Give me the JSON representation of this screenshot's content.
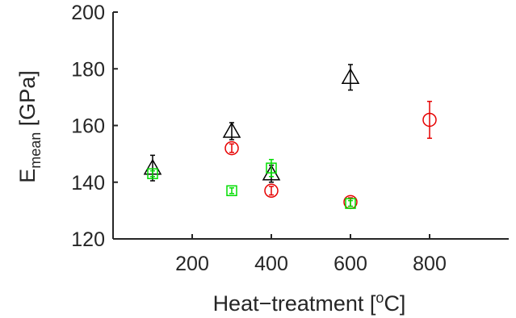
{
  "chart_data": {
    "type": "scatter",
    "title": "",
    "xlabel": {
      "main": "Heat−treatment [",
      "sup": "o",
      "end": "C]"
    },
    "ylabel": {
      "main": "E",
      "sub": "mean",
      "end": " [GPa]"
    },
    "xlim": [
      0,
      1000
    ],
    "ylim": [
      120,
      200
    ],
    "xticks": [
      200,
      400,
      600,
      800
    ],
    "yticks": [
      120,
      140,
      160,
      180,
      200
    ],
    "xtick_labels": [
      "200",
      "400",
      "600",
      "800"
    ],
    "ytick_labels": [
      "120",
      "140",
      "160",
      "180",
      "200"
    ],
    "grid": false,
    "series": [
      {
        "marker": "triangle",
        "color": "#000000",
        "points": [
          {
            "x": 100,
            "y": 145,
            "err": 4.5
          },
          {
            "x": 300,
            "y": 158,
            "err": 3
          },
          {
            "x": 400,
            "y": 143,
            "err": 3
          },
          {
            "x": 600,
            "y": 177,
            "err": 4.5
          }
        ]
      },
      {
        "marker": "circle",
        "color": "#e60000",
        "points": [
          {
            "x": 300,
            "y": 152,
            "err": 1.5
          },
          {
            "x": 400,
            "y": 137,
            "err": 1.5
          },
          {
            "x": 600,
            "y": 133,
            "err": 1.5
          },
          {
            "x": 800,
            "y": 162,
            "err": 6.5
          }
        ]
      },
      {
        "marker": "square",
        "color": "#00dd00",
        "points": [
          {
            "x": 100,
            "y": 143,
            "err": 1
          },
          {
            "x": 300,
            "y": 137,
            "err": 1
          },
          {
            "x": 400,
            "y": 145,
            "err": 3
          },
          {
            "x": 600,
            "y": 132.5,
            "err": 1
          }
        ]
      }
    ]
  }
}
